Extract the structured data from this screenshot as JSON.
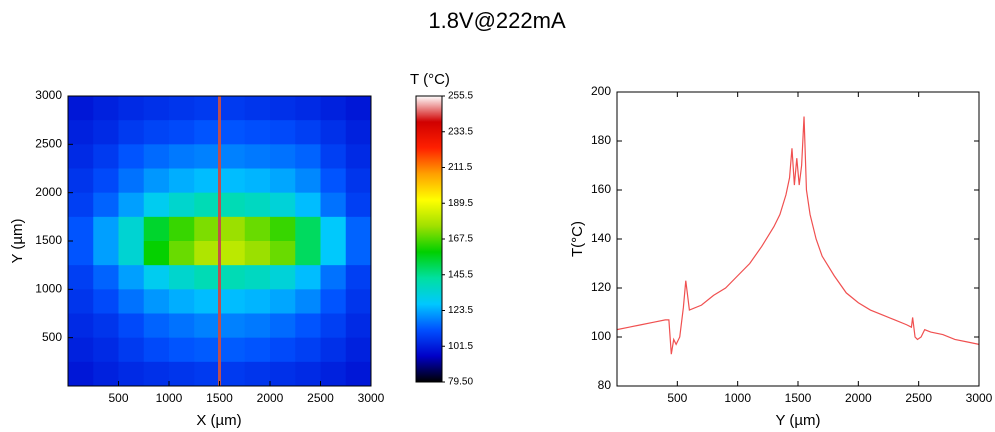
{
  "title": "1.8V@222mA",
  "chart_data": [
    {
      "type": "heatmap",
      "x_label": "X (µm)",
      "y_label": "Y (µm)",
      "colorbar_label": "T (°C)",
      "xlim": [
        0,
        3000
      ],
      "ylim": [
        0,
        3000
      ],
      "xticks": [
        500,
        1000,
        1500,
        2000,
        2500,
        3000
      ],
      "yticks": [
        500,
        1000,
        1500,
        2000,
        2500,
        3000
      ],
      "x": [
        125,
        375,
        625,
        875,
        1125,
        1375,
        1625,
        1875,
        2125,
        2375,
        2625,
        2875
      ],
      "y": [
        2875,
        2625,
        2375,
        2125,
        1875,
        1625,
        1375,
        1125,
        875,
        625,
        375,
        125
      ],
      "z": [
        [
          100,
          102,
          104,
          105,
          106,
          107,
          107,
          106,
          105,
          104,
          102,
          100
        ],
        [
          102,
          104,
          107,
          109,
          110,
          112,
          112,
          111,
          110,
          108,
          105,
          102
        ],
        [
          104,
          107,
          112,
          115,
          117,
          118,
          118,
          117,
          116,
          114,
          108,
          104
        ],
        [
          106,
          110,
          116,
          121,
          124,
          126,
          126,
          125,
          123,
          119,
          112,
          106
        ],
        [
          108,
          114,
          122,
          130,
          136,
          140,
          140,
          138,
          134,
          126,
          116,
          108
        ],
        [
          112,
          122,
          135,
          155,
          165,
          172,
          175,
          170,
          165,
          150,
          128,
          114
        ],
        [
          112,
          122,
          135,
          160,
          170,
          178,
          180,
          175,
          170,
          150,
          128,
          114
        ],
        [
          108,
          114,
          122,
          130,
          136,
          140,
          140,
          138,
          134,
          126,
          116,
          108
        ],
        [
          106,
          110,
          116,
          121,
          124,
          126,
          126,
          125,
          123,
          119,
          112,
          106
        ],
        [
          104,
          106,
          110,
          114,
          116,
          118,
          118,
          117,
          115,
          112,
          108,
          104
        ],
        [
          102,
          104,
          107,
          110,
          112,
          113,
          113,
          112,
          110,
          108,
          105,
          102
        ],
        [
          100,
          102,
          104,
          105,
          106,
          107,
          107,
          106,
          105,
          104,
          102,
          100
        ]
      ],
      "zlim": [
        79.5,
        255.5
      ],
      "zticks": [
        {
          "value": 79.5,
          "label": "79.50"
        },
        101.5,
        123.5,
        145.5,
        167.5,
        189.5,
        211.5,
        233.5,
        255.5
      ],
      "colormap": [
        "#000000",
        "#0000c8",
        "#0050ff",
        "#00c8ff",
        "#00e0a0",
        "#00d000",
        "#a0e000",
        "#ffff00",
        "#ffa000",
        "#ff2000",
        "#d00000",
        "#ffffff"
      ],
      "vline": {
        "x": 1500,
        "color": "#c0504d"
      }
    },
    {
      "type": "line",
      "x_label": "Y (µm)",
      "y_label": "T(°C)",
      "xlim": [
        0,
        3000
      ],
      "ylim": [
        80,
        200
      ],
      "xticks": [
        500,
        1000,
        1500,
        2000,
        2500,
        3000
      ],
      "yticks": [
        80,
        100,
        120,
        140,
        160,
        180,
        200
      ],
      "x": [
        0,
        100,
        200,
        300,
        400,
        430,
        450,
        470,
        490,
        520,
        550,
        570,
        600,
        700,
        800,
        900,
        1000,
        1100,
        1200,
        1300,
        1350,
        1400,
        1430,
        1450,
        1470,
        1490,
        1510,
        1530,
        1550,
        1570,
        1600,
        1650,
        1700,
        1800,
        1900,
        2000,
        2100,
        2200,
        2300,
        2400,
        2440,
        2450,
        2470,
        2490,
        2520,
        2550,
        2600,
        2700,
        2800,
        2900,
        3000
      ],
      "series": [
        {
          "color": "#f05050",
          "values": [
            103,
            104,
            105,
            106,
            107,
            107,
            93,
            99,
            97,
            100,
            112,
            123,
            111,
            113,
            117,
            120,
            125,
            130,
            137,
            145,
            150,
            158,
            165,
            177,
            162,
            173,
            162,
            170,
            190,
            160,
            150,
            140,
            133,
            125,
            118,
            114,
            111,
            109,
            107,
            105,
            104,
            108,
            100,
            99,
            100,
            103,
            102,
            101,
            99,
            98,
            97
          ]
        }
      ]
    }
  ]
}
